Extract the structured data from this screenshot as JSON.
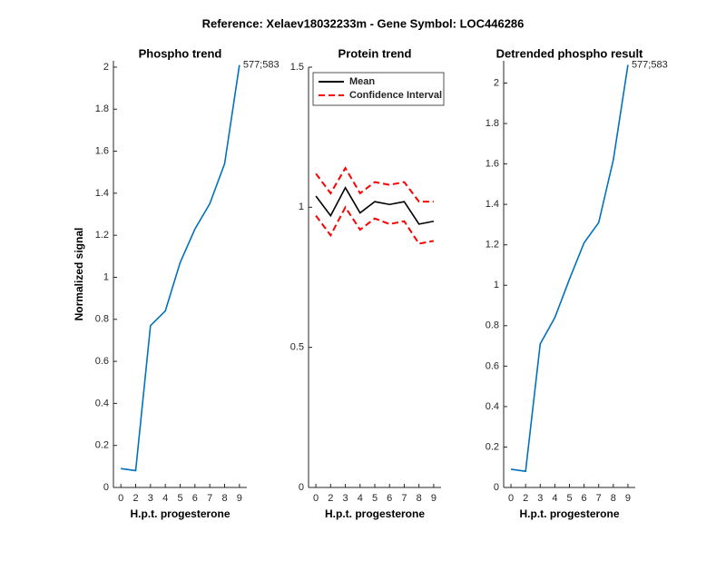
{
  "title": "Reference:  Xelaev18032233m - Gene Symbol:  LOC446286",
  "chart_data": [
    {
      "type": "line",
      "title": "Phospho trend",
      "xlabel": "H.p.t. progesterone",
      "ylabel": "Normalized signal",
      "categories": [
        "0",
        "2",
        "3",
        "4",
        "5",
        "6",
        "7",
        "8",
        "9"
      ],
      "series": [
        {
          "name": "Phospho",
          "color": "#0072bd",
          "values": [
            0.09,
            0.08,
            0.77,
            0.84,
            1.07,
            1.23,
            1.35,
            1.54,
            2.01
          ]
        }
      ],
      "annotation": "577;583",
      "ylim": [
        0,
        2.03
      ],
      "yticks": [
        0,
        0.2,
        0.4,
        0.6,
        0.8,
        1,
        1.2,
        1.4,
        1.6,
        1.8,
        2
      ]
    },
    {
      "type": "line",
      "title": "Protein trend",
      "xlabel": "H.p.t. progesterone",
      "categories": [
        "0",
        "2",
        "3",
        "4",
        "5",
        "6",
        "7",
        "8",
        "9"
      ],
      "series": [
        {
          "name": "Mean",
          "color": "#000000",
          "values": [
            1.04,
            0.97,
            1.07,
            0.98,
            1.02,
            1.01,
            1.02,
            0.94,
            0.95
          ]
        },
        {
          "name": "Confidence Interval",
          "color": "#ff0000",
          "dashed": true,
          "upper": [
            1.12,
            1.05,
            1.14,
            1.05,
            1.09,
            1.08,
            1.09,
            1.02,
            1.02
          ],
          "lower": [
            0.97,
            0.9,
            1.0,
            0.92,
            0.96,
            0.94,
            0.95,
            0.87,
            0.88
          ]
        }
      ],
      "legend": "northwest",
      "ylim": [
        0,
        1.5
      ],
      "yticks": [
        0,
        0.5,
        1,
        1.5
      ]
    },
    {
      "type": "line",
      "title": "Detrended phospho result",
      "xlabel": "H.p.t. progesterone",
      "categories": [
        "0",
        "2",
        "3",
        "4",
        "5",
        "6",
        "7",
        "8",
        "9"
      ],
      "series": [
        {
          "name": "Detrended",
          "color": "#0072bd",
          "values": [
            0.09,
            0.08,
            0.71,
            0.84,
            1.03,
            1.21,
            1.31,
            1.62,
            2.09
          ]
        }
      ],
      "annotation": "577;583",
      "ylim": [
        0,
        2.11
      ],
      "yticks": [
        0,
        0.2,
        0.4,
        0.6,
        0.8,
        1,
        1.2,
        1.4,
        1.6,
        1.8,
        2
      ]
    }
  ]
}
